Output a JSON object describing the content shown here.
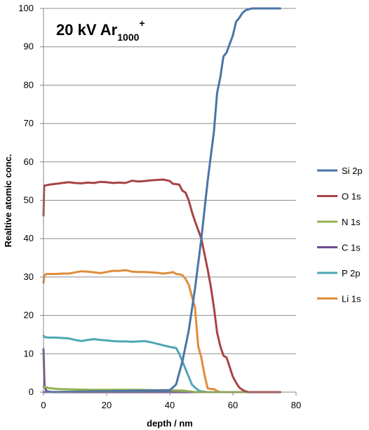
{
  "chart_data": {
    "type": "line",
    "title": {
      "main": "20 kV Ar",
      "subscript": "1000",
      "superscript": "+"
    },
    "xlabel": "depth / nm",
    "ylabel": "Realtive atomic conc.",
    "xlim": [
      0,
      80
    ],
    "ylim": [
      0,
      100
    ],
    "xticks": [
      0,
      20,
      40,
      60,
      80
    ],
    "yticks": [
      0,
      10,
      20,
      30,
      40,
      50,
      60,
      70,
      80,
      90,
      100
    ],
    "grid": "horizontal",
    "legend_position": "right",
    "series": [
      {
        "name": "Si 2p",
        "color": "#4a74a8",
        "points": [
          [
            0,
            0
          ],
          [
            40,
            0.5
          ],
          [
            42,
            2
          ],
          [
            44,
            8
          ],
          [
            46,
            16
          ],
          [
            48,
            27
          ],
          [
            50,
            40
          ],
          [
            52,
            55
          ],
          [
            54,
            68
          ],
          [
            55,
            78
          ],
          [
            56,
            82
          ],
          [
            57,
            87.5
          ],
          [
            58,
            88.5
          ],
          [
            60,
            93
          ],
          [
            61,
            96.5
          ],
          [
            62,
            97.5
          ],
          [
            63,
            98.8
          ],
          [
            64,
            99.5
          ],
          [
            66,
            100
          ],
          [
            75,
            100
          ]
        ]
      },
      {
        "name": "O 1s",
        "color": "#a84444",
        "points": [
          [
            0,
            46
          ],
          [
            0.2,
            53.8
          ],
          [
            2,
            54.1
          ],
          [
            4,
            54.3
          ],
          [
            6,
            54.5
          ],
          [
            8,
            54.7
          ],
          [
            10,
            54.5
          ],
          [
            12,
            54.4
          ],
          [
            14,
            54.6
          ],
          [
            16,
            54.5
          ],
          [
            18,
            54.8
          ],
          [
            20,
            54.7
          ],
          [
            22,
            54.5
          ],
          [
            24,
            54.6
          ],
          [
            26,
            54.5
          ],
          [
            28,
            55.1
          ],
          [
            30,
            54.9
          ],
          [
            32,
            55.0
          ],
          [
            34,
            55.2
          ],
          [
            36,
            55.3
          ],
          [
            38,
            55.4
          ],
          [
            40,
            55.0
          ],
          [
            41,
            54.3
          ],
          [
            43,
            54.1
          ],
          [
            44,
            52.5
          ],
          [
            45,
            52.0
          ],
          [
            46,
            50.0
          ],
          [
            47,
            47.0
          ],
          [
            48,
            44.5
          ],
          [
            50,
            40.0
          ],
          [
            52,
            32.0
          ],
          [
            53,
            27.5
          ],
          [
            54,
            22.0
          ],
          [
            55,
            15.5
          ],
          [
            56,
            12.0
          ],
          [
            57,
            9.5
          ],
          [
            58,
            9.0
          ],
          [
            59,
            6.5
          ],
          [
            60,
            4.0
          ],
          [
            61,
            2.5
          ],
          [
            62,
            1.2
          ],
          [
            63,
            0.6
          ],
          [
            64,
            0.2
          ],
          [
            65,
            0
          ],
          [
            75,
            0
          ]
        ]
      },
      {
        "name": "N 1s",
        "color": "#93b24f",
        "points": [
          [
            0,
            1.4
          ],
          [
            2,
            1.0
          ],
          [
            5,
            0.8
          ],
          [
            10,
            0.7
          ],
          [
            15,
            0.6
          ],
          [
            20,
            0.6
          ],
          [
            25,
            0.6
          ],
          [
            30,
            0.6
          ],
          [
            35,
            0.5
          ],
          [
            40,
            0.5
          ],
          [
            44,
            0.4
          ],
          [
            46,
            0.2
          ],
          [
            48,
            0
          ],
          [
            75,
            0
          ]
        ]
      },
      {
        "name": "C 1s",
        "color": "#6d4c91",
        "points": [
          [
            0,
            11.2
          ],
          [
            0.3,
            1.5
          ],
          [
            1,
            0.2
          ],
          [
            3,
            0
          ],
          [
            75,
            0
          ]
        ]
      },
      {
        "name": "P 2p",
        "color": "#4da7b4",
        "points": [
          [
            0,
            14.7
          ],
          [
            0.5,
            14.3
          ],
          [
            2,
            14.2
          ],
          [
            4,
            14.2
          ],
          [
            6,
            14.1
          ],
          [
            8,
            14.0
          ],
          [
            10,
            13.6
          ],
          [
            12,
            13.3
          ],
          [
            14,
            13.6
          ],
          [
            16,
            13.8
          ],
          [
            18,
            13.6
          ],
          [
            20,
            13.5
          ],
          [
            22,
            13.3
          ],
          [
            24,
            13.2
          ],
          [
            26,
            13.2
          ],
          [
            28,
            13.1
          ],
          [
            30,
            13.2
          ],
          [
            32,
            13.3
          ],
          [
            34,
            13.0
          ],
          [
            36,
            12.6
          ],
          [
            38,
            12.2
          ],
          [
            40,
            11.8
          ],
          [
            42,
            11.5
          ],
          [
            43,
            10.0
          ],
          [
            44,
            8.0
          ],
          [
            45,
            6.0
          ],
          [
            46,
            4.0
          ],
          [
            47,
            2.0
          ],
          [
            48,
            1.2
          ],
          [
            49,
            0.5
          ],
          [
            50,
            0.2
          ],
          [
            52,
            0
          ],
          [
            75,
            0
          ]
        ]
      },
      {
        "name": "Li 1s",
        "color": "#e08c3c",
        "points": [
          [
            0,
            28.5
          ],
          [
            0.3,
            30.5
          ],
          [
            1,
            30.8
          ],
          [
            4,
            30.8
          ],
          [
            6,
            30.9
          ],
          [
            8,
            30.9
          ],
          [
            10,
            31.2
          ],
          [
            12,
            31.5
          ],
          [
            14,
            31.4
          ],
          [
            16,
            31.2
          ],
          [
            18,
            31.0
          ],
          [
            20,
            31.3
          ],
          [
            22,
            31.6
          ],
          [
            24,
            31.6
          ],
          [
            26,
            31.8
          ],
          [
            28,
            31.4
          ],
          [
            30,
            31.3
          ],
          [
            32,
            31.3
          ],
          [
            34,
            31.2
          ],
          [
            36,
            31.1
          ],
          [
            38,
            30.9
          ],
          [
            40,
            31.1
          ],
          [
            41,
            31.3
          ],
          [
            42,
            30.8
          ],
          [
            43,
            30.7
          ],
          [
            44,
            30.5
          ],
          [
            45,
            29.5
          ],
          [
            46,
            28.0
          ],
          [
            47,
            25.0
          ],
          [
            48,
            22.0
          ],
          [
            49,
            12.0
          ],
          [
            50,
            9.0
          ],
          [
            51,
            4.5
          ],
          [
            52,
            1.0
          ],
          [
            53,
            0.8
          ],
          [
            54,
            0.8
          ],
          [
            55,
            0.3
          ],
          [
            56,
            0
          ],
          [
            75,
            0
          ]
        ]
      }
    ]
  }
}
